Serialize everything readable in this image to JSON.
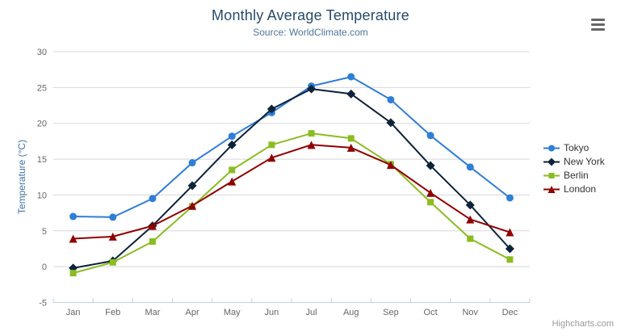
{
  "header": {
    "title": "Monthly Average Temperature",
    "subtitle": "Source: WorldClimate.com",
    "menu_icon": "hamburger-icon"
  },
  "credits": "Highcharts.com",
  "palette": {
    "title_color": "#274b6d",
    "subtitle_color": "#4d759e",
    "axis_label_color": "#666666",
    "axis_title_color": "#4572a7",
    "gridline_color": "#d8d8d8",
    "x_axis_line_color": "#c0d0e0",
    "legend_text_color": "#333333",
    "credits_color": "#999999",
    "menu_icon_color": "#666666",
    "background_color": "#ffffff"
  },
  "chart_data": {
    "type": "line",
    "title": "Monthly Average Temperature",
    "subtitle": "Source: WorldClimate.com",
    "xlabel": "",
    "ylabel": "Temperature (°C)",
    "ylim": [
      -5,
      30
    ],
    "yticks": [
      -5,
      0,
      5,
      10,
      15,
      20,
      25,
      30
    ],
    "grid": "horizontal",
    "legend_position": "right",
    "categories": [
      "Jan",
      "Feb",
      "Mar",
      "Apr",
      "May",
      "Jun",
      "Jul",
      "Aug",
      "Sep",
      "Oct",
      "Nov",
      "Dec"
    ],
    "series": [
      {
        "name": "Tokyo",
        "color": "#2f7ed8",
        "marker": "circle",
        "values": [
          7.0,
          6.9,
          9.5,
          14.5,
          18.2,
          21.5,
          25.2,
          26.5,
          23.3,
          18.3,
          13.9,
          9.6
        ]
      },
      {
        "name": "New York",
        "color": "#0d233a",
        "marker": "diamond",
        "values": [
          -0.2,
          0.8,
          5.7,
          11.3,
          17.0,
          22.0,
          24.8,
          24.1,
          20.1,
          14.1,
          8.6,
          2.5
        ]
      },
      {
        "name": "Berlin",
        "color": "#8bbc21",
        "marker": "square",
        "values": [
          -0.9,
          0.6,
          3.5,
          8.4,
          13.5,
          17.0,
          18.6,
          17.9,
          14.3,
          9.0,
          3.9,
          1.0
        ]
      },
      {
        "name": "London",
        "color": "#910000",
        "marker": "triangle",
        "values": [
          3.9,
          4.2,
          5.7,
          8.5,
          11.9,
          15.2,
          17.0,
          16.6,
          14.2,
          10.3,
          6.6,
          4.8
        ]
      }
    ]
  }
}
